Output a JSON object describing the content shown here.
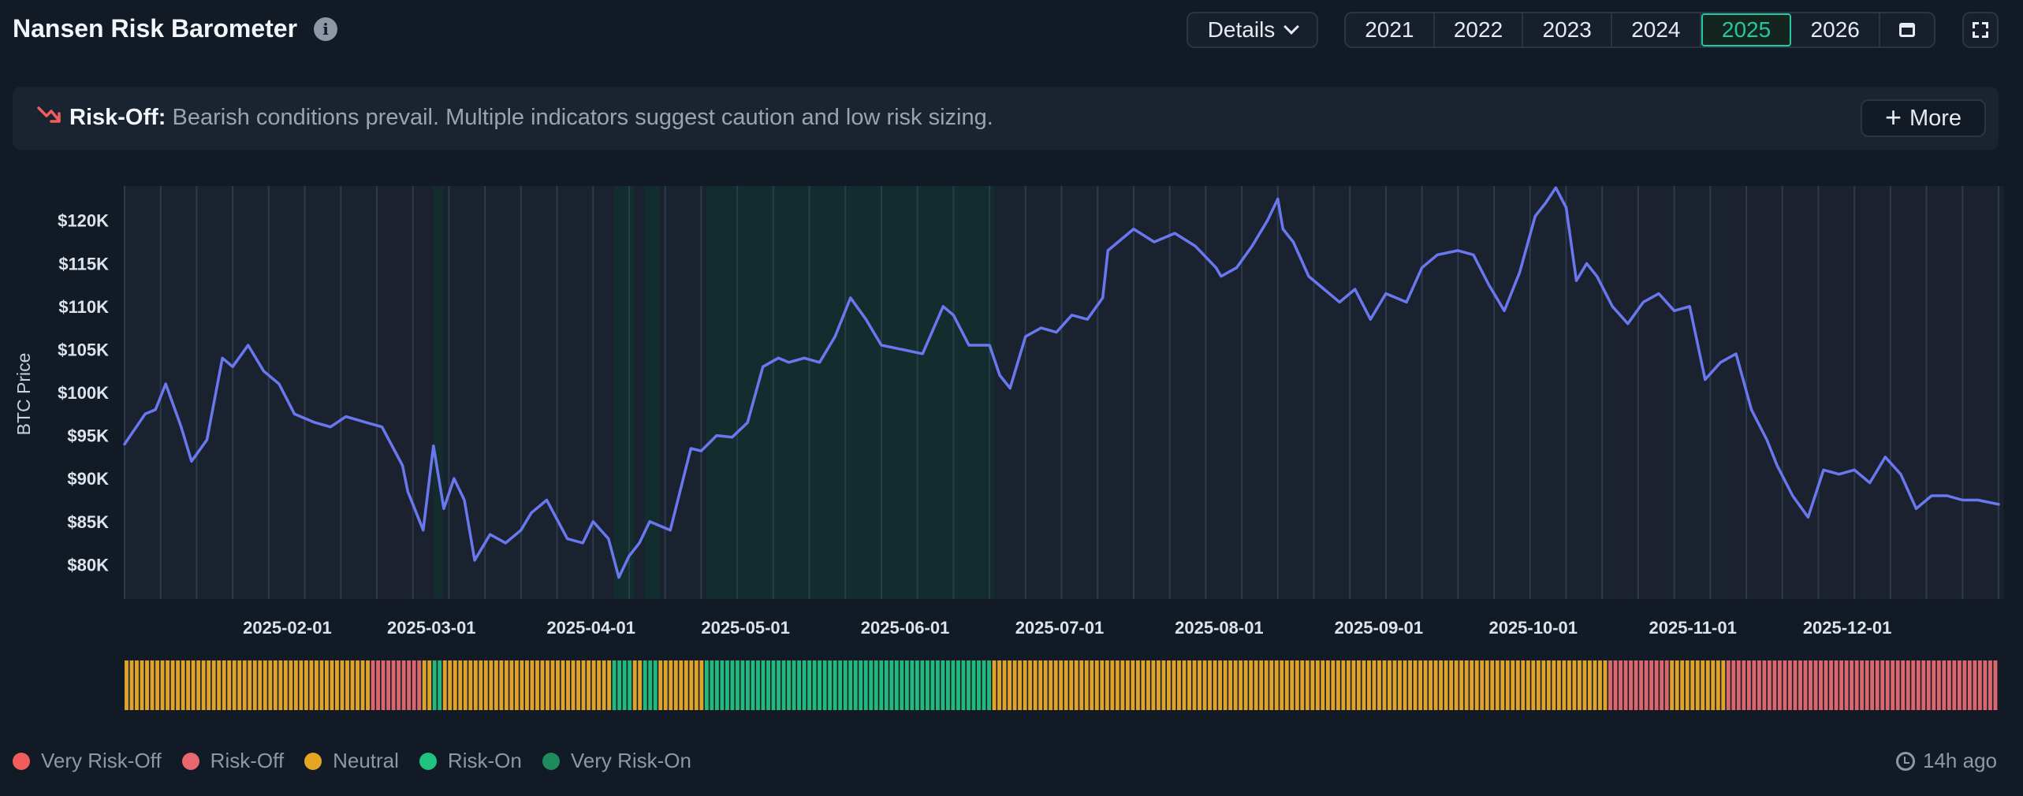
{
  "header": {
    "title": "Nansen Risk Barometer",
    "details_label": "Details",
    "years": [
      "2021",
      "2022",
      "2023",
      "2024",
      "2025",
      "2026"
    ],
    "active_year": "2025"
  },
  "banner": {
    "label": "Risk-Off:",
    "message": "Bearish conditions prevail. Multiple indicators suggest caution and low risk sizing.",
    "more_label": "More"
  },
  "legend": {
    "items": [
      {
        "label": "Very Risk-Off",
        "color": "#f25c5c"
      },
      {
        "label": "Risk-Off",
        "color": "#e8686e"
      },
      {
        "label": "Neutral",
        "color": "#e5a623"
      },
      {
        "label": "Risk-On",
        "color": "#1fc27f"
      },
      {
        "label": "Very Risk-On",
        "color": "#1f8a5e"
      }
    ]
  },
  "updated": "14h ago",
  "chart_data": {
    "type": "line",
    "ylabel": "BTC Price",
    "ylim": [
      76000,
      124000
    ],
    "yticks": [
      80000,
      85000,
      90000,
      95000,
      100000,
      105000,
      110000,
      115000,
      120000
    ],
    "ytick_labels": [
      "$80K",
      "$85K",
      "$90K",
      "$95K",
      "$100K",
      "$105K",
      "$110K",
      "$115K",
      "$120K"
    ],
    "x_start": "2025-01-01",
    "x_end": "2025-12-31",
    "xticks": [
      "2025-02-01",
      "2025-03-01",
      "2025-04-01",
      "2025-05-01",
      "2025-06-01",
      "2025-07-01",
      "2025-08-01",
      "2025-09-01",
      "2025-10-01",
      "2025-11-01",
      "2025-12-01"
    ],
    "line_color": "#6a78f0",
    "series": [
      {
        "x": [
          "2025-01-01",
          "2025-01-05",
          "2025-01-07",
          "2025-01-09",
          "2025-01-12",
          "2025-01-14",
          "2025-01-17",
          "2025-01-20",
          "2025-01-22",
          "2025-01-25",
          "2025-01-28",
          "2025-01-31",
          "2025-02-03",
          "2025-02-07",
          "2025-02-10",
          "2025-02-13",
          "2025-02-17",
          "2025-02-20",
          "2025-02-24",
          "2025-02-25",
          "2025-02-28",
          "2025-03-02",
          "2025-03-04",
          "2025-03-06",
          "2025-03-08",
          "2025-03-10",
          "2025-03-13",
          "2025-03-16",
          "2025-03-19",
          "2025-03-21",
          "2025-03-24",
          "2025-03-28",
          "2025-03-31",
          "2025-04-02",
          "2025-04-05",
          "2025-04-07",
          "2025-04-09",
          "2025-04-11",
          "2025-04-13",
          "2025-04-17",
          "2025-04-21",
          "2025-04-23",
          "2025-04-26",
          "2025-04-29",
          "2025-05-02",
          "2025-05-05",
          "2025-05-08",
          "2025-05-10",
          "2025-05-13",
          "2025-05-16",
          "2025-05-19",
          "2025-05-22",
          "2025-05-25",
          "2025-05-28",
          "2025-06-01",
          "2025-06-05",
          "2025-06-09",
          "2025-06-11",
          "2025-06-14",
          "2025-06-18",
          "2025-06-20",
          "2025-06-22",
          "2025-06-25",
          "2025-06-28",
          "2025-07-01",
          "2025-07-04",
          "2025-07-07",
          "2025-07-10",
          "2025-07-11",
          "2025-07-14",
          "2025-07-16",
          "2025-07-20",
          "2025-07-24",
          "2025-07-28",
          "2025-08-01",
          "2025-08-02",
          "2025-08-05",
          "2025-08-08",
          "2025-08-11",
          "2025-08-13",
          "2025-08-14",
          "2025-08-16",
          "2025-08-19",
          "2025-08-22",
          "2025-08-25",
          "2025-08-28",
          "2025-08-31",
          "2025-09-03",
          "2025-09-07",
          "2025-09-10",
          "2025-09-13",
          "2025-09-17",
          "2025-09-20",
          "2025-09-23",
          "2025-09-26",
          "2025-09-29",
          "2025-10-02",
          "2025-10-04",
          "2025-10-06",
          "2025-10-08",
          "2025-10-10",
          "2025-10-12",
          "2025-10-14",
          "2025-10-17",
          "2025-10-20",
          "2025-10-23",
          "2025-10-26",
          "2025-10-29",
          "2025-11-01",
          "2025-11-04",
          "2025-11-07",
          "2025-11-10",
          "2025-11-13",
          "2025-11-16",
          "2025-11-18",
          "2025-11-21",
          "2025-11-24",
          "2025-11-27",
          "2025-11-30",
          "2025-12-03",
          "2025-12-06",
          "2025-12-09",
          "2025-12-12",
          "2025-12-15",
          "2025-12-18",
          "2025-12-21",
          "2025-12-24",
          "2025-12-27",
          "2025-12-31"
        ],
        "values": [
          94000,
          97500,
          98000,
          101000,
          96000,
          92000,
          94500,
          104000,
          103000,
          105500,
          102500,
          101000,
          97500,
          96500,
          96000,
          97200,
          96500,
          96000,
          91500,
          88500,
          84000,
          93800,
          86500,
          90000,
          87500,
          80500,
          83500,
          82500,
          84000,
          86000,
          87500,
          83000,
          82500,
          85000,
          83000,
          78500,
          81000,
          82500,
          85000,
          84000,
          93500,
          93200,
          95000,
          94800,
          96500,
          103000,
          104000,
          103500,
          104000,
          103500,
          106500,
          111000,
          108500,
          105500,
          105000,
          104500,
          110000,
          109000,
          105500,
          105500,
          102000,
          100500,
          106500,
          107500,
          107000,
          109000,
          108500,
          111000,
          116500,
          118000,
          119000,
          117500,
          118500,
          117000,
          114500,
          113500,
          114500,
          117000,
          120000,
          122500,
          119000,
          117500,
          113500,
          112000,
          110500,
          112000,
          108500,
          111500,
          110500,
          114500,
          116000,
          116500,
          116000,
          112500,
          109500,
          114000,
          120500,
          122000,
          123800,
          121500,
          113000,
          115000,
          113500,
          110000,
          108000,
          110500,
          111500,
          109500,
          110000,
          101500,
          103500,
          104500,
          98000,
          94500,
          91500,
          88000,
          85500,
          91000,
          90500,
          91000,
          89500,
          92500,
          90500,
          86500,
          88000,
          88000,
          87500,
          87500,
          87000
        ]
      }
    ],
    "risk_bar": {
      "colors": {
        "very_risk_off": "#f25c5c",
        "risk_off": "#d9676d",
        "neutral": "#e0a32a",
        "risk_on": "#22b97e",
        "very_risk_on": "#1f8a5e"
      },
      "segments": [
        {
          "start": "2025-01-01",
          "end": "2025-02-17",
          "state": "neutral"
        },
        {
          "start": "2025-02-18",
          "end": "2025-02-27",
          "state": "risk_off"
        },
        {
          "start": "2025-02-28",
          "end": "2025-03-01",
          "state": "neutral"
        },
        {
          "start": "2025-03-02",
          "end": "2025-03-03",
          "state": "risk_on"
        },
        {
          "start": "2025-03-04",
          "end": "2025-04-05",
          "state": "neutral"
        },
        {
          "start": "2025-04-06",
          "end": "2025-04-09",
          "state": "risk_on"
        },
        {
          "start": "2025-04-10",
          "end": "2025-04-11",
          "state": "neutral"
        },
        {
          "start": "2025-04-12",
          "end": "2025-04-14",
          "state": "risk_on"
        },
        {
          "start": "2025-04-15",
          "end": "2025-04-23",
          "state": "neutral"
        },
        {
          "start": "2025-04-24",
          "end": "2025-06-18",
          "state": "risk_on"
        },
        {
          "start": "2025-06-19",
          "end": "2025-10-16",
          "state": "neutral"
        },
        {
          "start": "2025-10-17",
          "end": "2025-10-28",
          "state": "risk_off"
        },
        {
          "start": "2025-10-29",
          "end": "2025-11-08",
          "state": "neutral"
        },
        {
          "start": "2025-11-09",
          "end": "2025-12-31",
          "state": "risk_off"
        }
      ]
    }
  }
}
